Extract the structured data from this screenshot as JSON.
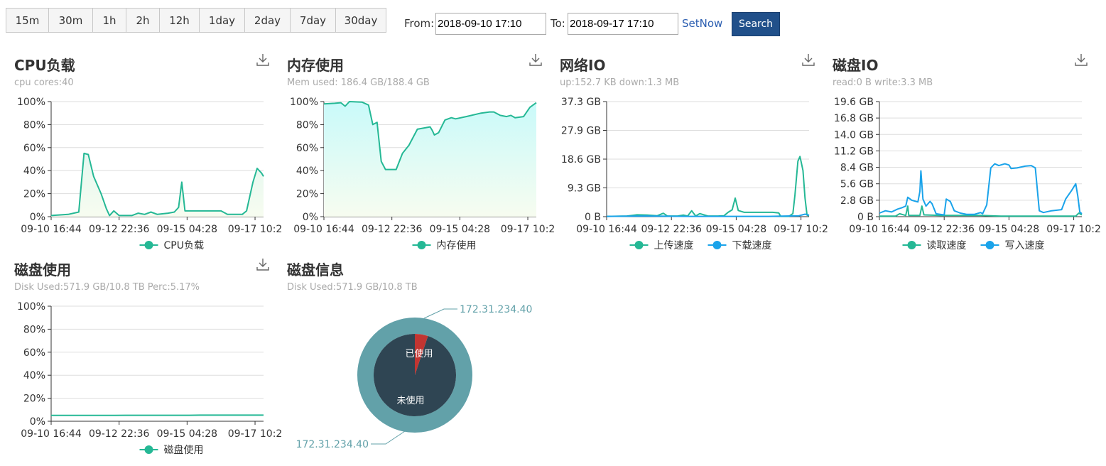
{
  "toolbar": {
    "ranges": [
      {
        "label": "15m",
        "w": 60
      },
      {
        "label": "30m",
        "w": 62
      },
      {
        "label": "1h",
        "w": 47
      },
      {
        "label": "2h",
        "w": 47
      },
      {
        "label": "12h",
        "w": 56
      },
      {
        "label": "1day",
        "w": 64
      },
      {
        "label": "2day",
        "w": 64
      },
      {
        "label": "7day",
        "w": 64
      },
      {
        "label": "30day",
        "w": 72
      }
    ],
    "from_label": "From:",
    "from_value": "2018-09-10 17:10",
    "to_label": "To:",
    "to_value": "2018-09-17 17:10",
    "setnow_label": "SetNow",
    "search_label": "Search"
  },
  "colors": {
    "green": "#25b895",
    "blue": "#1aa3ea",
    "pie_outer": "#62a1a9",
    "pie_inner": "#2f4553",
    "pie_used": "#c23531"
  },
  "panels": {
    "cpu": {
      "title": "CPU负载",
      "subtitle": "cpu cores:40"
    },
    "mem": {
      "title": "内存使用",
      "subtitle": "Mem used: 186.4 GB/188.4 GB"
    },
    "net": {
      "title": "网络IO",
      "subtitle": "up:152.7 KB down:1.3 MB"
    },
    "disk_io": {
      "title": "磁盘IO",
      "subtitle": "read:0 B write:3.3 MB"
    },
    "disk_use": {
      "title": "磁盘使用",
      "subtitle": "Disk Used:571.9 GB/10.8 TB Perc:5.17%"
    },
    "disk_info": {
      "title": "磁盘信息",
      "subtitle": "Disk Used:571.9 GB/10.8 TB"
    }
  },
  "chart_data": [
    {
      "id": "cpu",
      "type": "area",
      "x": [
        "09-10 16:44",
        "09-12 22:36",
        "09-15 04:28",
        "09-17 10:2"
      ],
      "y_ticks": [
        "0%",
        "20%",
        "40%",
        "60%",
        "80%",
        "100%"
      ],
      "ylim": [
        0,
        100
      ],
      "series": [
        {
          "name": "CPU负载",
          "color": "#25b895",
          "fill": true,
          "points": [
            [
              0,
              1
            ],
            [
              0.08,
              2
            ],
            [
              0.13,
              4
            ],
            [
              0.155,
              55
            ],
            [
              0.175,
              54
            ],
            [
              0.2,
              35
            ],
            [
              0.235,
              20
            ],
            [
              0.26,
              7
            ],
            [
              0.275,
              1
            ],
            [
              0.295,
              5
            ],
            [
              0.32,
              1
            ],
            [
              0.38,
              1
            ],
            [
              0.41,
              3
            ],
            [
              0.44,
              2
            ],
            [
              0.47,
              4
            ],
            [
              0.5,
              2
            ],
            [
              0.55,
              3
            ],
            [
              0.58,
              4
            ],
            [
              0.6,
              8
            ],
            [
              0.615,
              30
            ],
            [
              0.63,
              5
            ],
            [
              0.68,
              5
            ],
            [
              0.75,
              5
            ],
            [
              0.8,
              5
            ],
            [
              0.83,
              2
            ],
            [
              0.9,
              2
            ],
            [
              0.92,
              5
            ],
            [
              0.95,
              30
            ],
            [
              0.97,
              42
            ],
            [
              0.99,
              38
            ],
            [
              1,
              35
            ]
          ]
        }
      ]
    },
    {
      "id": "mem",
      "type": "area",
      "x": [
        "09-10 16:44",
        "09-12 22:36",
        "09-15 04:28",
        "09-17 10:2"
      ],
      "y_ticks": [
        "0%",
        "20%",
        "40%",
        "60%",
        "80%",
        "100%"
      ],
      "ylim": [
        0,
        100
      ],
      "series": [
        {
          "name": "内存使用",
          "color": "#25b895",
          "fill": true,
          "points": [
            [
              0,
              98
            ],
            [
              0.05,
              98.5
            ],
            [
              0.08,
              99
            ],
            [
              0.1,
              96
            ],
            [
              0.12,
              100
            ],
            [
              0.18,
              99.5
            ],
            [
              0.21,
              97
            ],
            [
              0.23,
              80
            ],
            [
              0.25,
              82
            ],
            [
              0.27,
              48
            ],
            [
              0.29,
              41
            ],
            [
              0.34,
              41
            ],
            [
              0.37,
              55
            ],
            [
              0.4,
              62
            ],
            [
              0.44,
              76
            ],
            [
              0.5,
              78
            ],
            [
              0.51,
              75
            ],
            [
              0.52,
              71
            ],
            [
              0.54,
              73
            ],
            [
              0.57,
              84
            ],
            [
              0.6,
              86
            ],
            [
              0.62,
              85
            ],
            [
              0.67,
              87
            ],
            [
              0.74,
              90
            ],
            [
              0.78,
              91
            ],
            [
              0.8,
              91
            ],
            [
              0.83,
              88
            ],
            [
              0.86,
              87
            ],
            [
              0.88,
              88
            ],
            [
              0.9,
              86
            ],
            [
              0.94,
              87
            ],
            [
              0.97,
              95
            ],
            [
              1,
              99
            ]
          ]
        }
      ]
    },
    {
      "id": "net",
      "type": "line",
      "x": [
        "09-10 16:44",
        "09-12 22:36",
        "09-15 04:28",
        "09-17 10:2"
      ],
      "y_ticks": [
        "0 B",
        "9.3 GB",
        "18.6 GB",
        "27.9 GB",
        "37.3 GB"
      ],
      "ylim": [
        0,
        37.3
      ],
      "series": [
        {
          "name": "上传速度",
          "color": "#25b895",
          "points": [
            [
              0,
              0.1
            ],
            [
              0.1,
              0.2
            ],
            [
              0.15,
              0.6
            ],
            [
              0.2,
              0.5
            ],
            [
              0.25,
              0.3
            ],
            [
              0.28,
              1.1
            ],
            [
              0.3,
              0.2
            ],
            [
              0.35,
              0.2
            ],
            [
              0.38,
              0.5
            ],
            [
              0.4,
              0.2
            ],
            [
              0.42,
              1.9
            ],
            [
              0.44,
              0.2
            ],
            [
              0.46,
              1.0
            ],
            [
              0.5,
              0.2
            ],
            [
              0.55,
              0.2
            ],
            [
              0.58,
              0.3
            ],
            [
              0.6,
              1.4
            ],
            [
              0.62,
              2.2
            ],
            [
              0.635,
              6.0
            ],
            [
              0.65,
              2.0
            ],
            [
              0.68,
              1.4
            ],
            [
              0.75,
              1.4
            ],
            [
              0.82,
              1.4
            ],
            [
              0.85,
              1.2
            ],
            [
              0.86,
              0.1
            ],
            [
              0.9,
              0.1
            ],
            [
              0.92,
              1.0
            ],
            [
              0.93,
              7.0
            ],
            [
              0.945,
              18.0
            ],
            [
              0.955,
              19.5
            ],
            [
              0.97,
              15
            ],
            [
              0.98,
              6
            ],
            [
              0.99,
              0.5
            ],
            [
              1,
              0.3
            ]
          ]
        },
        {
          "name": "下载速度",
          "color": "#1aa3ea",
          "points": [
            [
              0,
              0.1
            ],
            [
              0.2,
              0.2
            ],
            [
              0.4,
              0.1
            ],
            [
              0.6,
              0.1
            ],
            [
              0.8,
              0.1
            ],
            [
              0.95,
              0.3
            ],
            [
              0.98,
              0.8
            ],
            [
              1,
              0.5
            ]
          ]
        }
      ]
    },
    {
      "id": "disk_io",
      "type": "line",
      "x": [
        "09-10 16:44",
        "09-12 22:36",
        "09-15 04:28",
        "09-17 10:2"
      ],
      "y_ticks": [
        "0 B",
        "2.8 GB",
        "5.6 GB",
        "8.4 GB",
        "11.2 GB",
        "14.0 GB",
        "16.8 GB",
        "19.6 GB"
      ],
      "ylim": [
        0,
        19.6
      ],
      "series": [
        {
          "name": "读取速度",
          "color": "#25b895",
          "points": [
            [
              0,
              0.1
            ],
            [
              0.08,
              0.1
            ],
            [
              0.1,
              0.5
            ],
            [
              0.13,
              0.2
            ],
            [
              0.14,
              1.8
            ],
            [
              0.145,
              0.2
            ],
            [
              0.2,
              0.2
            ],
            [
              0.21,
              1.8
            ],
            [
              0.22,
              0.3
            ],
            [
              0.3,
              0.2
            ],
            [
              0.4,
              0.2
            ],
            [
              0.5,
              0.2
            ],
            [
              0.6,
              0.1
            ],
            [
              0.7,
              0.1
            ],
            [
              0.8,
              0.1
            ],
            [
              0.9,
              0.1
            ],
            [
              0.97,
              0.1
            ],
            [
              0.985,
              0.6
            ],
            [
              1,
              0.3
            ]
          ]
        },
        {
          "name": "写入速度",
          "color": "#1aa3ea",
          "points": [
            [
              0,
              0.6
            ],
            [
              0.03,
              1.0
            ],
            [
              0.06,
              0.8
            ],
            [
              0.09,
              1.3
            ],
            [
              0.11,
              1.5
            ],
            [
              0.13,
              1.8
            ],
            [
              0.14,
              3.3
            ],
            [
              0.16,
              2.8
            ],
            [
              0.19,
              2.5
            ],
            [
              0.2,
              4.3
            ],
            [
              0.205,
              7.8
            ],
            [
              0.215,
              3.0
            ],
            [
              0.23,
              1.8
            ],
            [
              0.25,
              2.6
            ],
            [
              0.26,
              2.2
            ],
            [
              0.28,
              0.5
            ],
            [
              0.3,
              0.4
            ],
            [
              0.32,
              0.3
            ],
            [
              0.33,
              3.0
            ],
            [
              0.35,
              2.6
            ],
            [
              0.37,
              1.0
            ],
            [
              0.4,
              0.6
            ],
            [
              0.43,
              0.4
            ],
            [
              0.47,
              0.4
            ],
            [
              0.5,
              0.7
            ],
            [
              0.51,
              0.5
            ],
            [
              0.53,
              2.0
            ],
            [
              0.55,
              8.3
            ],
            [
              0.57,
              9.0
            ],
            [
              0.59,
              8.7
            ],
            [
              0.62,
              9.0
            ],
            [
              0.64,
              8.8
            ],
            [
              0.65,
              8.2
            ],
            [
              0.68,
              8.3
            ],
            [
              0.72,
              8.6
            ],
            [
              0.75,
              8.7
            ],
            [
              0.77,
              8.3
            ],
            [
              0.79,
              1.0
            ],
            [
              0.81,
              0.7
            ],
            [
              0.85,
              1.0
            ],
            [
              0.9,
              1.2
            ],
            [
              0.92,
              3.0
            ],
            [
              0.95,
              4.5
            ],
            [
              0.97,
              5.6
            ],
            [
              0.98,
              3.5
            ],
            [
              0.99,
              0.8
            ],
            [
              1,
              0.5
            ]
          ]
        }
      ]
    },
    {
      "id": "disk_use",
      "type": "line",
      "x": [
        "09-10 16:44",
        "09-12 22:36",
        "09-15 04:28",
        "09-17 10:2"
      ],
      "y_ticks": [
        "0%",
        "20%",
        "40%",
        "60%",
        "80%",
        "100%"
      ],
      "ylim": [
        0,
        100
      ],
      "series": [
        {
          "name": "磁盘使用",
          "color": "#25b895",
          "points": [
            [
              0,
              5.1
            ],
            [
              0.3,
              5.1
            ],
            [
              0.35,
              5.2
            ],
            [
              0.65,
              5.2
            ],
            [
              0.7,
              5.3
            ],
            [
              1,
              5.3
            ]
          ]
        }
      ]
    },
    {
      "id": "disk_info",
      "type": "pie",
      "outer": {
        "label": "172.31.234.40",
        "slices": [
          {
            "label": "172.31.234.40",
            "value": 100
          }
        ]
      },
      "inner": {
        "slices": [
          {
            "label": "已使用",
            "value": 5.17
          },
          {
            "label": "未使用",
            "value": 94.83
          }
        ]
      }
    }
  ]
}
